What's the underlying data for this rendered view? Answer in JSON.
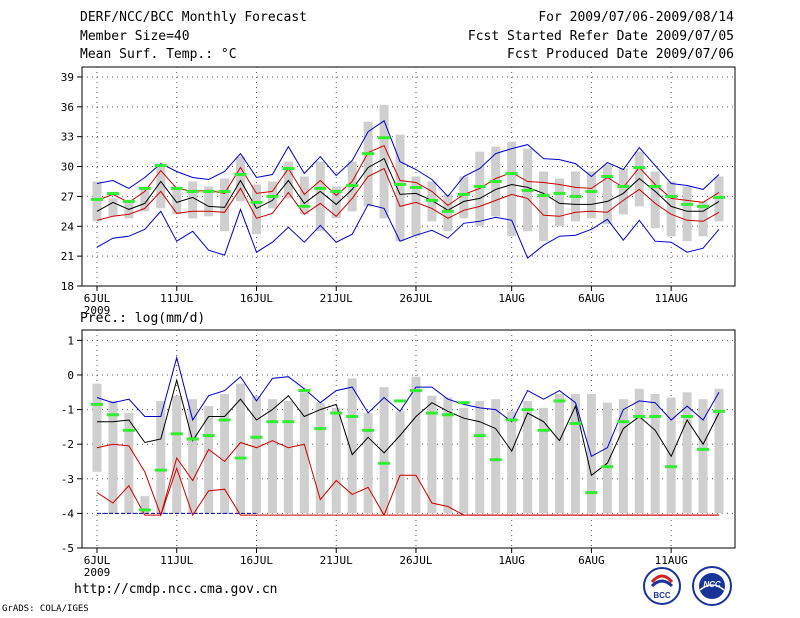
{
  "header": {
    "title": "DERF/NCC/BCC Monthly Forecast",
    "member_size": "Member Size=40",
    "variable": "Mean Surf. Temp.: °C",
    "period": "For 2009/07/06-2009/08/14",
    "start_ref": "Fcst Started Refer Date 2009/07/05",
    "produced": "Fcst Produced Date 2009/07/06"
  },
  "footer": {
    "url": "http://cmdp.ncc.cma.gov.cn",
    "credit": "GrADS: COLA/IGES",
    "logo_bcc": "BCC",
    "logo_ncc": "NCC"
  },
  "colors": {
    "spread": "#0000cc",
    "sd": "#cc0000",
    "mean": "#000000",
    "obs_bar": "#cfcfcf",
    "marker": "#33ee33",
    "grid": "#555555"
  },
  "chart_data": [
    {
      "type": "line",
      "title": "Mean Surf. Temp.: °C",
      "xlabel": "",
      "ylabel": "°C",
      "ylim": [
        18,
        40
      ],
      "yticks": [
        18,
        21,
        24,
        27,
        30,
        33,
        36,
        39
      ],
      "x_tick_labels": [
        "6JUL",
        "11JUL",
        "16JUL",
        "21JUL",
        "26JUL",
        "1AUG",
        "6AUG",
        "11AUG"
      ],
      "x_tick_days": [
        0,
        5,
        10,
        15,
        20,
        26,
        31,
        36
      ],
      "x_sublabel": "2009",
      "n_days": 40,
      "series": [
        {
          "name": "ensemble max",
          "values": [
            28.3,
            28.6,
            27.8,
            28.9,
            30.3,
            29.5,
            28.9,
            28.7,
            29.5,
            31.3,
            28.9,
            29.2,
            32.0,
            29.3,
            31.0,
            29.1,
            30.6,
            33.5,
            34.6,
            30.5,
            29.7,
            28.7,
            27.0,
            29.0,
            29.8,
            31.3,
            31.8,
            32.2,
            30.8,
            30.7,
            30.3,
            29.0,
            30.4,
            29.7,
            31.9,
            30.1,
            28.3,
            28.1,
            27.7,
            29.2
          ]
        },
        {
          "name": "mean + sd",
          "values": [
            26.6,
            27.2,
            26.4,
            27.5,
            29.6,
            27.8,
            27.5,
            27.6,
            27.3,
            29.9,
            27.3,
            27.5,
            29.8,
            27.2,
            28.6,
            27.1,
            28.5,
            31.4,
            32.1,
            28.6,
            28.4,
            27.5,
            26.1,
            27.2,
            27.8,
            28.8,
            29.4,
            28.5,
            28.4,
            28.2,
            27.9,
            27.8,
            28.9,
            27.9,
            29.9,
            28.2,
            26.8,
            26.6,
            26.4,
            27.4
          ]
        },
        {
          "name": "ensemble mean",
          "values": [
            25.5,
            26.4,
            25.7,
            26.3,
            28.5,
            26.4,
            26.9,
            26.0,
            25.9,
            28.6,
            25.8,
            26.6,
            28.6,
            26.3,
            27.5,
            26.2,
            27.7,
            29.9,
            30.8,
            27.2,
            27.3,
            26.6,
            25.6,
            26.5,
            26.8,
            27.7,
            28.2,
            27.9,
            27.3,
            26.3,
            26.2,
            26.2,
            26.5,
            27.3,
            28.8,
            27.5,
            26.0,
            25.5,
            25.5,
            26.5
          ]
        },
        {
          "name": "mean - sd",
          "values": [
            24.6,
            25.0,
            25.2,
            25.8,
            27.5,
            25.3,
            25.5,
            25.5,
            25.4,
            27.8,
            24.8,
            25.3,
            27.4,
            25.2,
            26.3,
            25.0,
            26.8,
            29.0,
            29.8,
            26.0,
            26.4,
            25.8,
            24.8,
            25.6,
            26.0,
            26.6,
            27.2,
            26.8,
            25.1,
            25.0,
            25.4,
            25.5,
            25.4,
            26.6,
            27.7,
            26.3,
            25.2,
            24.6,
            24.5,
            25.4
          ]
        },
        {
          "name": "ensemble min",
          "values": [
            21.9,
            22.8,
            23.0,
            23.7,
            25.5,
            22.5,
            23.5,
            21.6,
            21.1,
            25.7,
            21.4,
            22.4,
            23.9,
            22.4,
            24.1,
            22.4,
            23.2,
            26.2,
            25.8,
            22.5,
            23.1,
            23.6,
            22.8,
            24.3,
            24.5,
            24.9,
            24.6,
            20.8,
            22.1,
            23.0,
            23.1,
            23.7,
            24.7,
            22.6,
            24.6,
            22.5,
            22.4,
            21.4,
            21.8,
            23.7
          ]
        }
      ],
      "obs_bars": {
        "name": "observed range",
        "low": [
          24.5,
          25.0,
          24.8,
          25.5,
          25.8,
          25.2,
          24.8,
          25.0,
          23.5,
          26.5,
          23.2,
          25.8,
          26.8,
          25.2,
          23.5,
          24.8,
          25.5,
          26.0,
          24.8,
          22.5,
          23.0,
          24.5,
          23.5,
          24.8,
          24.0,
          25.0,
          23.0,
          23.5,
          22.5,
          24.0,
          24.5,
          24.8,
          24.2,
          25.2,
          26.0,
          23.8,
          23.0,
          22.5,
          23.0,
          24.5
        ],
        "high": [
          28.5,
          26.8,
          26.5,
          27.8,
          30.0,
          28.0,
          28.5,
          28.0,
          28.8,
          31.0,
          28.2,
          28.5,
          30.5,
          29.0,
          30.5,
          28.0,
          30.5,
          34.5,
          36.2,
          33.2,
          29.0,
          28.5,
          27.2,
          29.0,
          31.5,
          32.0,
          32.5,
          31.8,
          29.5,
          28.8,
          29.5,
          29.5,
          30.2,
          29.8,
          31.5,
          29.5,
          28.5,
          28.0,
          26.5,
          29.0
        ]
      },
      "markers": {
        "name": "observed",
        "values": [
          26.7,
          27.3,
          26.5,
          27.8,
          30.1,
          27.8,
          27.5,
          27.5,
          27.5,
          29.2,
          26.4,
          27.0,
          29.8,
          26.0,
          27.8,
          27.5,
          28.1,
          31.3,
          32.9,
          28.2,
          27.9,
          26.6,
          25.5,
          27.2,
          28.0,
          28.5,
          29.3,
          27.6,
          27.1,
          27.3,
          27.0,
          27.5,
          29.0,
          28.0,
          29.9,
          28.0,
          27.0,
          26.2,
          26.0,
          26.9
        ]
      }
    },
    {
      "type": "line",
      "title": "Prec.: log(mm/d)",
      "xlabel": "",
      "ylabel": "log(mm/d)",
      "ylim": [
        -5,
        1.3
      ],
      "yticks": [
        -5,
        -4,
        -3,
        -2,
        -1,
        0,
        1
      ],
      "x_tick_labels": [
        "6JUL",
        "11JUL",
        "16JUL",
        "21JUL",
        "26JUL",
        "1AUG",
        "6AUG",
        "11AUG"
      ],
      "x_tick_days": [
        0,
        5,
        10,
        15,
        20,
        26,
        31,
        36
      ],
      "x_sublabel": "2009",
      "n_days": 40,
      "series": [
        {
          "name": "ensemble max",
          "values": [
            -0.65,
            -0.8,
            -0.7,
            -1.2,
            -1.2,
            0.5,
            -1.3,
            -0.6,
            -0.45,
            -0.05,
            -0.75,
            -0.1,
            -0.05,
            -0.4,
            -0.8,
            -0.45,
            -0.35,
            -1.1,
            -0.65,
            -1.05,
            -0.35,
            -0.35,
            -0.7,
            -0.85,
            -0.95,
            -1.0,
            -1.35,
            -0.45,
            -0.7,
            -0.45,
            -0.8,
            -2.35,
            -2.1,
            -1.0,
            -0.75,
            -0.8,
            -1.3,
            -0.9,
            -1.3,
            -0.5
          ]
        },
        {
          "name": "ensemble mean",
          "values": [
            -1.35,
            -1.35,
            -1.3,
            -1.95,
            -1.85,
            -0.15,
            -1.9,
            -1.2,
            -1.2,
            -0.7,
            -1.3,
            -1.0,
            -0.6,
            -1.2,
            -1.0,
            -0.85,
            -2.3,
            -1.8,
            -2.25,
            -1.75,
            -1.2,
            -0.8,
            -1.05,
            -1.25,
            -1.35,
            -1.55,
            -2.2,
            -1.1,
            -1.35,
            -1.9,
            -0.9,
            -2.9,
            -2.55,
            -1.55,
            -1.2,
            -1.6,
            -2.35,
            -1.3,
            -2.0,
            -1.1
          ]
        },
        {
          "name": "mean - sd",
          "values": [
            -2.1,
            -2.0,
            -2.05,
            -2.8,
            -4.05,
            -2.4,
            -3.05,
            -2.15,
            -2.5,
            -1.95,
            -2.1,
            -1.9,
            -2.1,
            -2.0,
            -3.6,
            -3.05,
            -3.45,
            -3.25,
            -4.05,
            -2.9,
            -2.9,
            -3.7,
            -3.8,
            -4.05,
            -4.05,
            -4.05,
            -4.05,
            -4.05,
            -4.05,
            -4.05,
            -4.05,
            -4.05,
            -4.05,
            -4.05,
            -4.05,
            -4.05,
            -4.05,
            -4.05,
            -4.05,
            -4.05
          ]
        },
        {
          "name": "ensemble min",
          "values": [
            -3.4,
            -3.7,
            -3.2,
            -4.05,
            -4.05,
            -2.7,
            -4.05,
            -3.35,
            -3.3,
            -4.05,
            -4.05,
            -4.05,
            -4.05,
            -4.05,
            -4.05,
            -4.05,
            -4.05,
            -4.05,
            -4.05,
            -4.05,
            -4.05,
            -4.05,
            -4.05,
            -4.05,
            -4.05,
            -4.05,
            -4.05,
            -4.05,
            -4.05,
            -4.05,
            -4.05,
            -4.05,
            -4.05,
            -4.05,
            -4.05,
            -4.05,
            -4.05,
            -4.05,
            -4.05,
            -4.05
          ]
        }
      ],
      "floor_line": {
        "value": -4,
        "days": [
          0,
          10
        ]
      },
      "obs_bars": {
        "name": "observed range",
        "low": [
          -2.8,
          -4.0,
          -4.0,
          -4.0,
          -4.0,
          -4.0,
          -4.0,
          -4.0,
          -4.0,
          -4.0,
          -4.0,
          -4.0,
          -4.0,
          -4.0,
          -4.0,
          -4.0,
          -4.0,
          -4.0,
          -4.0,
          -4.0,
          -4.0,
          -4.0,
          -4.0,
          -4.0,
          -4.0,
          -4.0,
          -4.0,
          -4.0,
          -4.0,
          -4.0,
          -4.0,
          -4.0,
          -4.0,
          -4.0,
          -4.0,
          -4.0,
          -4.0,
          -4.0,
          -4.0,
          -4.0
        ],
        "high": [
          -0.25,
          -0.75,
          -1.1,
          -3.5,
          -0.75,
          -0.6,
          -0.7,
          -0.9,
          -0.55,
          -0.25,
          -0.6,
          -0.7,
          -0.75,
          -0.5,
          -0.8,
          -0.95,
          -0.1,
          -1.1,
          -0.35,
          -1.05,
          -0.05,
          -0.6,
          -0.65,
          -0.95,
          -0.75,
          -0.7,
          -1.05,
          -0.75,
          -0.95,
          -0.55,
          -0.55,
          -0.55,
          -0.8,
          -0.7,
          -0.4,
          -0.55,
          -0.65,
          -0.5,
          -0.7,
          -0.4
        ]
      },
      "markers": {
        "name": "observed",
        "values": [
          -0.85,
          -1.15,
          -1.6,
          -3.9,
          -2.75,
          -1.7,
          -1.85,
          -1.75,
          -1.3,
          -2.4,
          -1.8,
          -1.35,
          -1.35,
          -0.45,
          -1.55,
          -1.1,
          -1.2,
          -1.6,
          -2.55,
          -0.75,
          -0.45,
          -1.1,
          -1.15,
          -0.8,
          -1.75,
          -2.45,
          -1.3,
          -1.0,
          -1.6,
          -0.75,
          -1.4,
          -3.4,
          -2.65,
          -1.35,
          -1.2,
          -1.2,
          -2.65,
          -1.2,
          -2.15,
          -1.05
        ]
      }
    }
  ]
}
